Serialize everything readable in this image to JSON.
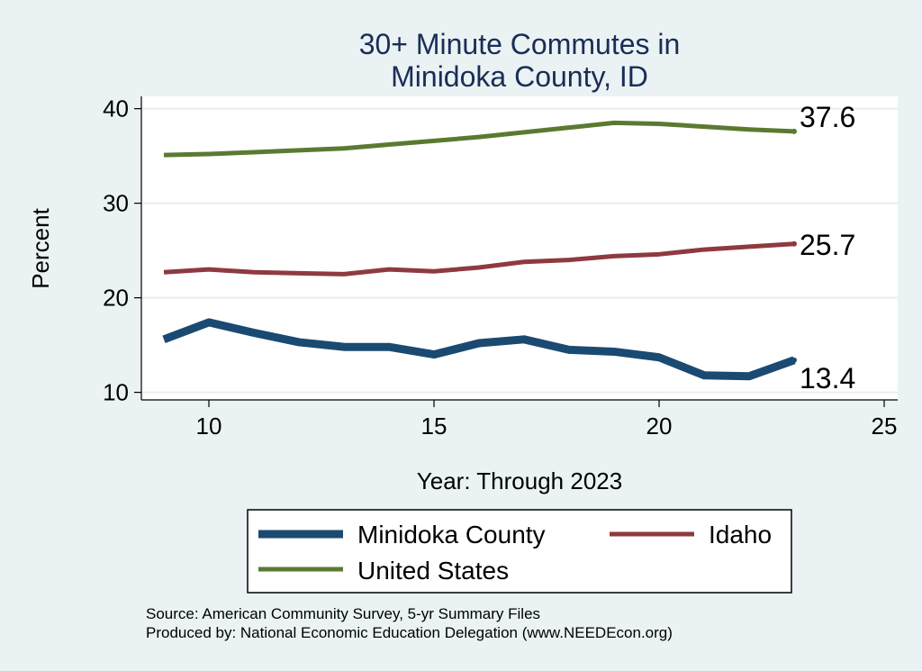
{
  "chart_data": {
    "type": "line",
    "title_lines": [
      "30+ Minute Commutes in",
      "Minidoka County, ID"
    ],
    "xlabel": "Year: Through 2023",
    "ylabel": "Percent",
    "xlim": [
      8.5,
      25.3
    ],
    "ylim": [
      9.2,
      41.3
    ],
    "xticks": [
      10,
      15,
      20,
      25
    ],
    "yticks": [
      10,
      20,
      30,
      40
    ],
    "grid": true,
    "legend_position": "bottom",
    "x": [
      9,
      10,
      11,
      12,
      13,
      14,
      15,
      16,
      17,
      18,
      19,
      20,
      21,
      22,
      23
    ],
    "series": [
      {
        "name": "Minidoka County",
        "color": "#1a4a72",
        "values": [
          15.6,
          17.4,
          16.3,
          15.3,
          14.8,
          14.8,
          14.0,
          15.2,
          15.6,
          14.5,
          14.3,
          13.7,
          11.8,
          11.7,
          13.4
        ],
        "end_label": "13.4"
      },
      {
        "name": "Idaho",
        "color": "#8e3a3f",
        "values": [
          22.7,
          23.0,
          22.7,
          22.6,
          22.5,
          23.0,
          22.8,
          23.2,
          23.8,
          24.0,
          24.4,
          24.6,
          25.1,
          25.4,
          25.7
        ],
        "end_label": "25.7"
      },
      {
        "name": "United States",
        "color": "#5a7a31",
        "values": [
          35.1,
          35.2,
          35.4,
          35.6,
          35.8,
          36.2,
          36.6,
          37.0,
          37.5,
          38.0,
          38.5,
          38.4,
          38.1,
          37.8,
          37.6
        ],
        "end_label": "37.6"
      }
    ],
    "source_lines": [
      "Source: American Community Survey, 5-yr Summary Files",
      "Produced by: National Economic Education Delegation (www.NEEDEcon.org)"
    ]
  }
}
